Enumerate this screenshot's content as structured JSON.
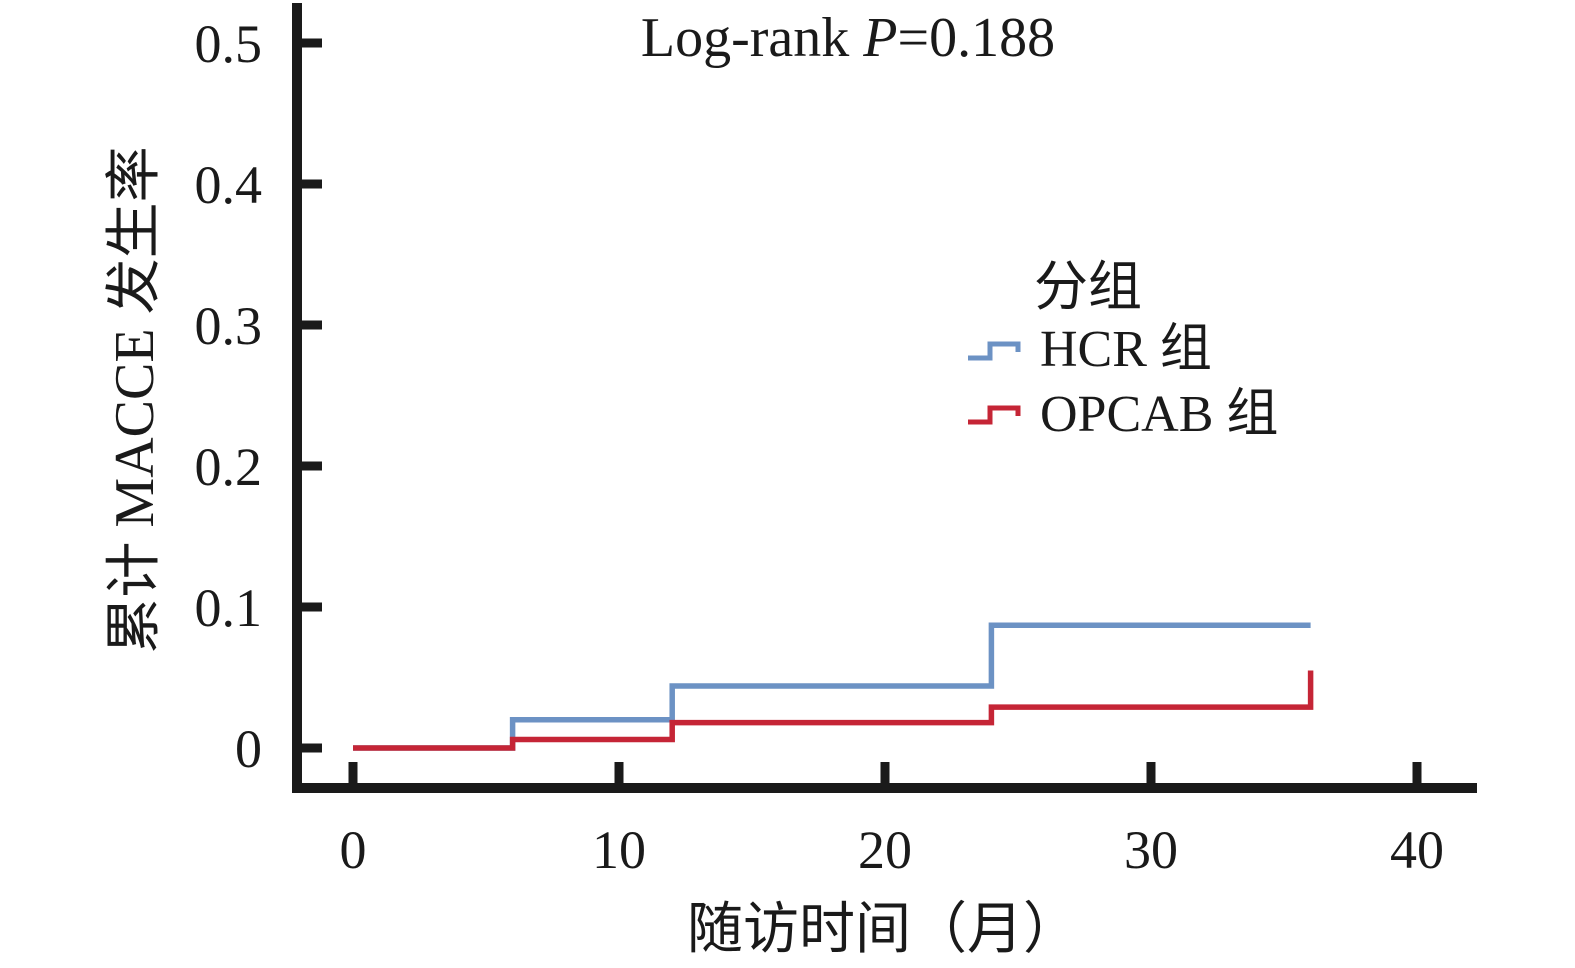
{
  "chart_data": {
    "type": "line",
    "subtype": "kaplan-meier-step",
    "title": "Log-rank P=0.188",
    "title_parts": {
      "prefix": "Log-rank",
      "italic": "P",
      "suffix": "=0.188"
    },
    "xlabel": "随访时间（月）",
    "ylabel": "累计 MACCE 发生率",
    "xlim": [
      0,
      42
    ],
    "ylim": [
      0,
      0.53
    ],
    "grid": false,
    "x_ticks": [
      0,
      10,
      20,
      30,
      40
    ],
    "x_tick_labels": [
      "0",
      "10",
      "20",
      "30",
      "40"
    ],
    "y_ticks": [
      0,
      0.1,
      0.2,
      0.3,
      0.4,
      0.5
    ],
    "y_tick_labels": [
      "0",
      "0.1",
      "0.2",
      "0.3",
      "0.4",
      "0.5"
    ],
    "legend": {
      "title": "分组",
      "position": "upper-right-inside",
      "items": [
        {
          "label": "HCR 组",
          "color": "#6C92C4"
        },
        {
          "label": "OPCAB 组",
          "color": "#C52536"
        }
      ]
    },
    "series": [
      {
        "name": "HCR 组",
        "color": "#6C92C4",
        "points": [
          [
            0,
            0
          ],
          [
            6,
            0
          ],
          [
            6,
            0.02
          ],
          [
            12,
            0.02
          ],
          [
            12,
            0.044
          ],
          [
            24,
            0.044
          ],
          [
            24,
            0.087
          ],
          [
            36,
            0.087
          ]
        ]
      },
      {
        "name": "OPCAB 组",
        "color": "#C52536",
        "points": [
          [
            0,
            0
          ],
          [
            6,
            0
          ],
          [
            6,
            0.006
          ],
          [
            12,
            0.006
          ],
          [
            12,
            0.018
          ],
          [
            24,
            0.018
          ],
          [
            24,
            0.029
          ],
          [
            36,
            0.029
          ],
          [
            36,
            0.055
          ]
        ]
      }
    ],
    "axis_color": "#1a1a1a"
  }
}
